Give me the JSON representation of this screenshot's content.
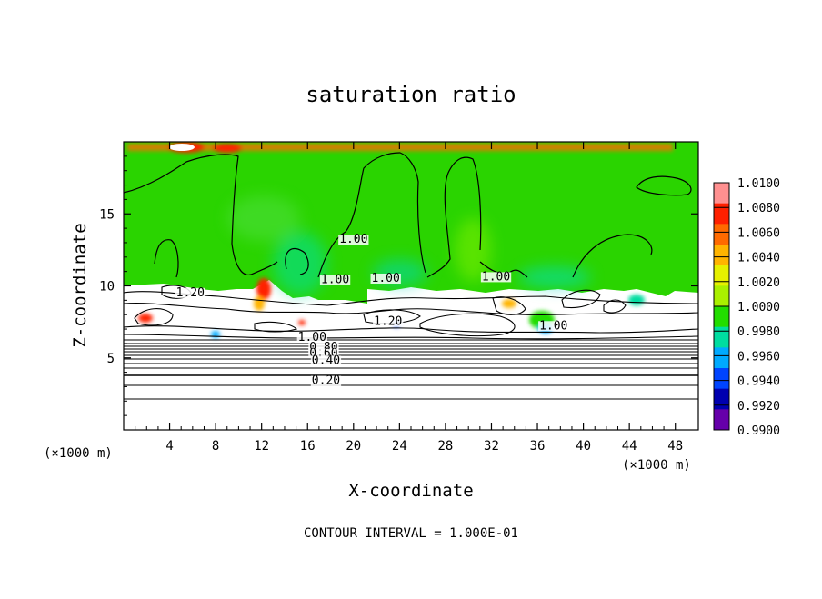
{
  "chart_data": {
    "type": "heatmap",
    "title": "saturation ratio",
    "xlabel": "X-coordinate",
    "ylabel": "Z-coordinate",
    "x_unit": "(×1000 m)",
    "xlim": [
      0,
      50
    ],
    "ylim": [
      0,
      20
    ],
    "x_ticks": [
      "4",
      "8",
      "12",
      "16",
      "20",
      "24",
      "28",
      "32",
      "36",
      "40",
      "44",
      "48"
    ],
    "y_ticks": [
      "5",
      "10",
      "15"
    ],
    "footer": "CONTOUR INTERVAL = 1.000E-01",
    "colorbar": {
      "ticks": [
        "1.0100",
        "1.0080",
        "1.0060",
        "1.0040",
        "1.0020",
        "1.0000",
        "0.9980",
        "0.9960",
        "0.9940",
        "0.9920",
        "0.9900"
      ],
      "colors": [
        "#ff9090",
        "#ff2000",
        "#ff6a00",
        "#ffb400",
        "#e6f000",
        "#aaf000",
        "#22dd00",
        "#00dda0",
        "#00aaff",
        "#0044ff",
        "#0000b0",
        "#6600aa"
      ]
    },
    "contour_labels": [
      {
        "text": "1.00",
        "x": 20,
        "y": 13.3
      },
      {
        "text": "1.00",
        "x": 18.4,
        "y": 10.5
      },
      {
        "text": "1.00",
        "x": 22.8,
        "y": 10.6
      },
      {
        "text": "1.00",
        "x": 32.4,
        "y": 10.7
      },
      {
        "text": "1.20",
        "x": 5.8,
        "y": 9.6
      },
      {
        "text": "1.20",
        "x": 23.0,
        "y": 7.6
      },
      {
        "text": "1.00",
        "x": 37.4,
        "y": 7.3
      },
      {
        "text": "1.00",
        "x": 16.4,
        "y": 6.5
      },
      {
        "text": "0.80",
        "x": 17.4,
        "y": 5.8
      },
      {
        "text": "0.60",
        "x": 17.4,
        "y": 5.4
      },
      {
        "text": "0.40",
        "x": 17.6,
        "y": 4.9
      },
      {
        "text": "0.20",
        "x": 17.6,
        "y": 3.5
      }
    ]
  }
}
